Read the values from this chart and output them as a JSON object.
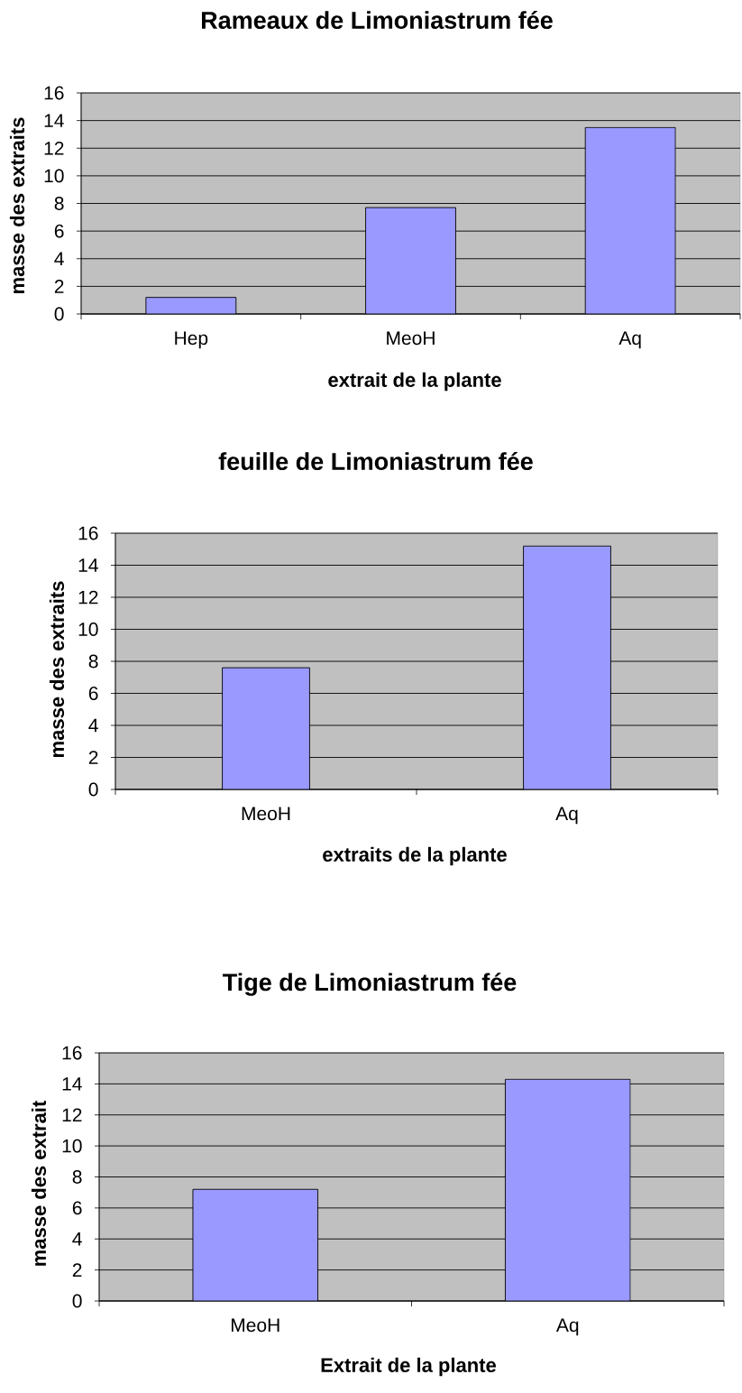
{
  "chart_data": [
    {
      "type": "bar",
      "title": "Rameaux de Limoniastrum fée",
      "xlabel": "extrait de la plante",
      "ylabel": "masse des extraits",
      "categories": [
        "Hep",
        "MeoH",
        "Aq"
      ],
      "values": [
        1.2,
        7.7,
        13.5
      ],
      "color": "#9999ff",
      "ylim": [
        0,
        16
      ],
      "yticks": [
        0,
        2,
        4,
        6,
        8,
        10,
        12,
        14,
        16
      ],
      "grid": "y"
    },
    {
      "type": "bar",
      "title": "feuille de Limoniastrum fée",
      "xlabel": "extraits de la plante",
      "ylabel": "masse des extraits",
      "categories": [
        "MeoH",
        "Aq"
      ],
      "values": [
        7.6,
        15.2
      ],
      "color": "#9999ff",
      "ylim": [
        0,
        16
      ],
      "yticks": [
        0,
        2,
        4,
        6,
        8,
        10,
        12,
        14,
        16
      ],
      "grid": "y"
    },
    {
      "type": "bar",
      "title": "Tige de Limoniastrum fée",
      "xlabel": "Extrait de la plante",
      "ylabel": "masse des extrait",
      "categories": [
        "MeoH",
        "Aq"
      ],
      "values": [
        7.2,
        14.3
      ],
      "color": "#9999ff",
      "ylim": [
        0,
        16
      ],
      "yticks": [
        0,
        2,
        4,
        6,
        8,
        10,
        12,
        14,
        16
      ],
      "grid": "y"
    }
  ]
}
